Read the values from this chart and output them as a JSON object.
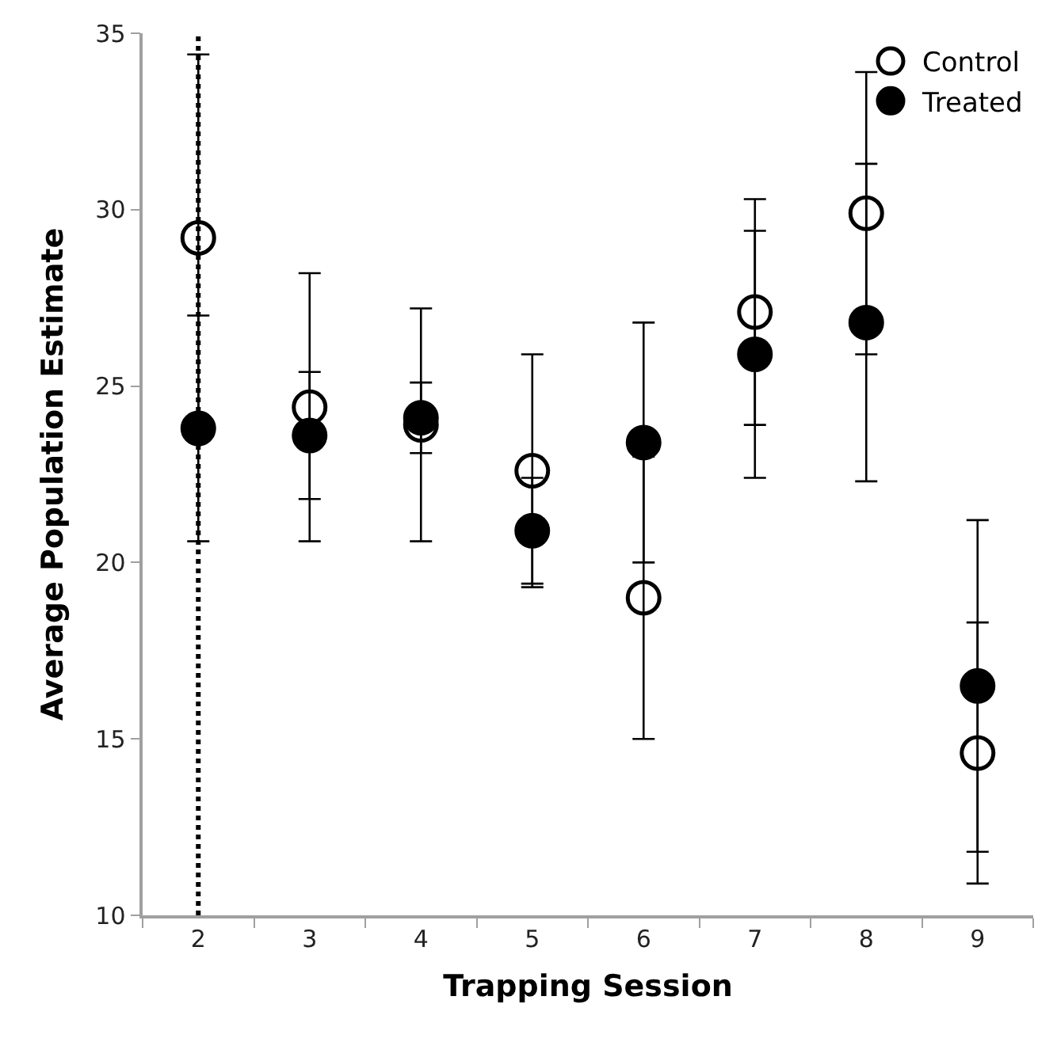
{
  "chart_data": {
    "type": "scatter",
    "xlabel": "Trapping Session",
    "ylabel": "Average Population Estimate",
    "categories": [
      "2",
      "3",
      "4",
      "5",
      "6",
      "7",
      "8",
      "9"
    ],
    "series": [
      {
        "name": "Control",
        "color": "#000000",
        "values": [
          29.2,
          24.4,
          23.9,
          22.6,
          19.0,
          27.1,
          29.9,
          14.6
        ],
        "errors": [
          5.2,
          3.8,
          3.3,
          3.3,
          4.0,
          3.2,
          4.0,
          3.7
        ]
      },
      {
        "name": "Treated",
        "color": "#000000",
        "values": [
          23.8,
          23.6,
          24.1,
          20.9,
          23.4,
          25.9,
          26.8,
          16.5
        ],
        "errors": [
          3.2,
          1.8,
          1.0,
          1.5,
          3.4,
          3.5,
          4.5,
          4.7
        ]
      }
    ],
    "ylim": [
      10,
      35
    ],
    "yticks": [
      10,
      15,
      20,
      25,
      30,
      35
    ],
    "ref_lines": [
      {
        "axis": "x",
        "value": "2",
        "line_style": "dotted",
        "color": "#000000"
      }
    ],
    "marker": "circle",
    "grid": false,
    "legend": "top right"
  }
}
